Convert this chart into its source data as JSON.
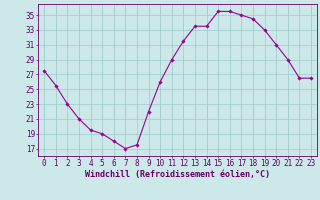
{
  "x": [
    0,
    1,
    2,
    3,
    4,
    5,
    6,
    7,
    8,
    9,
    10,
    11,
    12,
    13,
    14,
    15,
    16,
    17,
    18,
    19,
    20,
    21,
    22,
    23
  ],
  "y": [
    27.5,
    25.5,
    23.0,
    21.0,
    19.5,
    19.0,
    18.0,
    17.0,
    17.5,
    22.0,
    26.0,
    29.0,
    31.5,
    33.5,
    33.5,
    35.5,
    35.5,
    35.0,
    34.5,
    33.0,
    31.0,
    29.0,
    26.5,
    26.5
  ],
  "line_color": "#990099",
  "marker": "D",
  "marker_size": 1.8,
  "background_color": "#cce8e8",
  "grid_color": "#99cccc",
  "xlabel": "Windchill (Refroidissement éolien,°C)",
  "xlabel_color": "#660066",
  "tick_color": "#660066",
  "ylabel_ticks": [
    17,
    19,
    21,
    23,
    25,
    27,
    29,
    31,
    33,
    35
  ],
  "ylim": [
    16.0,
    36.5
  ],
  "xlim": [
    -0.5,
    23.5
  ],
  "xlabel_fontsize": 6.0,
  "tick_fontsize": 5.5
}
